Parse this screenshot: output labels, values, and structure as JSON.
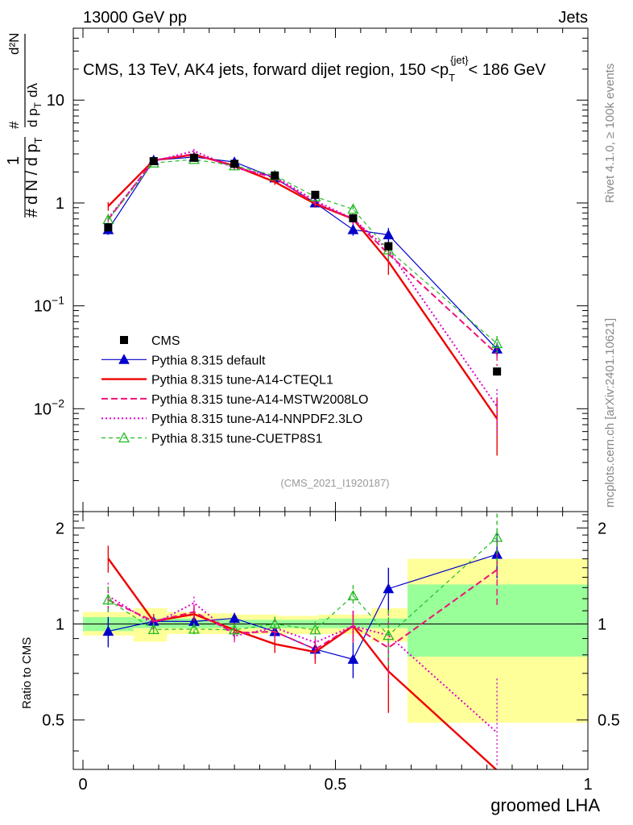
{
  "header": {
    "energy_label": "13000 GeV pp",
    "category_label": "Jets"
  },
  "side_labels": {
    "rivet": "Rivet 4.1.0, ≥ 100k events",
    "mcplots": "mcplots.cern.ch [arXiv:2401.10621]"
  },
  "chart_data": {
    "type": "line",
    "title": "CMS, 13 TeV, AK4 jets, forward dijet region, 150 <p_T^{jet}< 186 GeV",
    "title_parts": {
      "main": "CMS, 13 TeV, AK4 jets, forward dijet region, 150 <p",
      "sub": "T",
      "sup": "{jet}",
      "tail": "< 186 GeV"
    },
    "analysis_id": "(CMS_2021_I1920187)",
    "xlabel": "groomed LHA",
    "ylabel_parts": {
      "one": "1",
      "dN": "d N / d p",
      "num": "d²N",
      "den": "d p",
      "dl": "dλ",
      "sub": "T",
      "hash": "#"
    },
    "ratio_ylabel": "Ratio to CMS",
    "xlim": [
      0,
      1
    ],
    "ylim": [
      0.001,
      50
    ],
    "yscale": "log",
    "ratio_ylim": [
      0.35,
      2.25
    ],
    "x_ticks": [
      {
        "v": 0,
        "label": "0"
      },
      {
        "v": 0.5,
        "label": "0.5"
      },
      {
        "v": 1,
        "label": "1"
      }
    ],
    "y_ticks": [
      {
        "v": 0.01,
        "base": "10",
        "exp": "−2"
      },
      {
        "v": 0.1,
        "base": "10",
        "exp": "−1"
      },
      {
        "v": 1,
        "base": "1",
        "exp": ""
      },
      {
        "v": 10,
        "base": "10",
        "exp": ""
      }
    ],
    "ratio_ticks": [
      {
        "v": 0.5,
        "label": "0.5"
      },
      {
        "v": 1,
        "label": "1"
      },
      {
        "v": 2,
        "label": "2"
      }
    ],
    "bin_edges": [
      0,
      0.1,
      0.1666,
      0.2222,
      0.3,
      0.3846,
      0.4666,
      0.5714,
      0.6428,
      1.0
    ],
    "x_points": [
      0.05,
      0.14,
      0.22,
      0.3,
      0.38,
      0.46,
      0.535,
      0.605,
      0.82
    ],
    "data": {
      "name": "CMS",
      "values": [
        0.58,
        2.55,
        2.75,
        2.4,
        1.85,
        1.2,
        0.71,
        0.38,
        0.023
      ],
      "errors": [
        0.04,
        0.1,
        0.1,
        0.1,
        0.1,
        0.06,
        0.05,
        0.04,
        0.002
      ]
    },
    "ratio_bands": {
      "stat_low": [
        0.95,
        0.97,
        0.97,
        0.97,
        0.97,
        0.97,
        0.97,
        0.97,
        0.79
      ],
      "stat_high": [
        1.05,
        1.04,
        1.04,
        1.03,
        1.03,
        1.03,
        1.04,
        1.04,
        1.33
      ],
      "tot_low": [
        0.92,
        0.88,
        0.93,
        0.93,
        0.93,
        0.93,
        0.93,
        0.88,
        0.49
      ],
      "tot_high": [
        1.09,
        1.12,
        1.09,
        1.08,
        1.07,
        1.06,
        1.07,
        1.12,
        1.6
      ]
    },
    "series": [
      {
        "name": "Pythia 8.315 default",
        "color": "#0000cc",
        "dash": "",
        "width": 1.2,
        "marker": "triangle-filled",
        "values": [
          0.55,
          2.6,
          2.8,
          2.5,
          1.75,
          1.0,
          0.55,
          0.49,
          0.038
        ],
        "errors": [
          0.06,
          0.12,
          0.12,
          0.1,
          0.1,
          0.07,
          0.07,
          0.08,
          0.006
        ]
      },
      {
        "name": "Pythia 8.315 tune-A14-CTEQL1",
        "color": "#ee0000",
        "dash": "",
        "width": 2.4,
        "marker": "none",
        "values": [
          0.93,
          2.6,
          2.95,
          2.3,
          1.6,
          0.98,
          0.7,
          0.27,
          0.008
        ],
        "errors": [
          0.09,
          0.14,
          0.15,
          0.12,
          0.1,
          0.08,
          0.08,
          0.07,
          0.0045
        ]
      },
      {
        "name": "Pythia 8.315 tune-A14-MSTW2008LO",
        "color": "#ee1177",
        "dash": "8,4",
        "width": 2.0,
        "marker": "none",
        "values": [
          0.69,
          2.6,
          3.0,
          2.25,
          1.75,
          1.0,
          0.7,
          0.32,
          0.034
        ],
        "errors": [
          0.07,
          0.14,
          0.15,
          0.12,
          0.1,
          0.08,
          0.08,
          0.07,
          0.008
        ]
      },
      {
        "name": "Pythia 8.315 tune-A14-NNPDF2.3LO",
        "color": "#dd00cc",
        "dash": "2,3",
        "width": 2.0,
        "marker": "none",
        "values": [
          0.71,
          2.55,
          3.2,
          2.2,
          1.8,
          1.05,
          0.7,
          0.35,
          0.0105
        ],
        "errors": [
          0.07,
          0.14,
          0.15,
          0.12,
          0.1,
          0.08,
          0.08,
          0.07,
          0.005
        ]
      },
      {
        "name": "Pythia 8.315 tune-CUETP8S1",
        "color": "#22bb22",
        "dash": "5,4",
        "width": 1.2,
        "marker": "triangle-open",
        "values": [
          0.69,
          2.45,
          2.65,
          2.3,
          1.85,
          1.15,
          0.87,
          0.35,
          0.043
        ],
        "errors": [
          0.07,
          0.12,
          0.12,
          0.1,
          0.1,
          0.07,
          0.07,
          0.07,
          0.008
        ]
      }
    ],
    "legend_position": "center-left"
  }
}
